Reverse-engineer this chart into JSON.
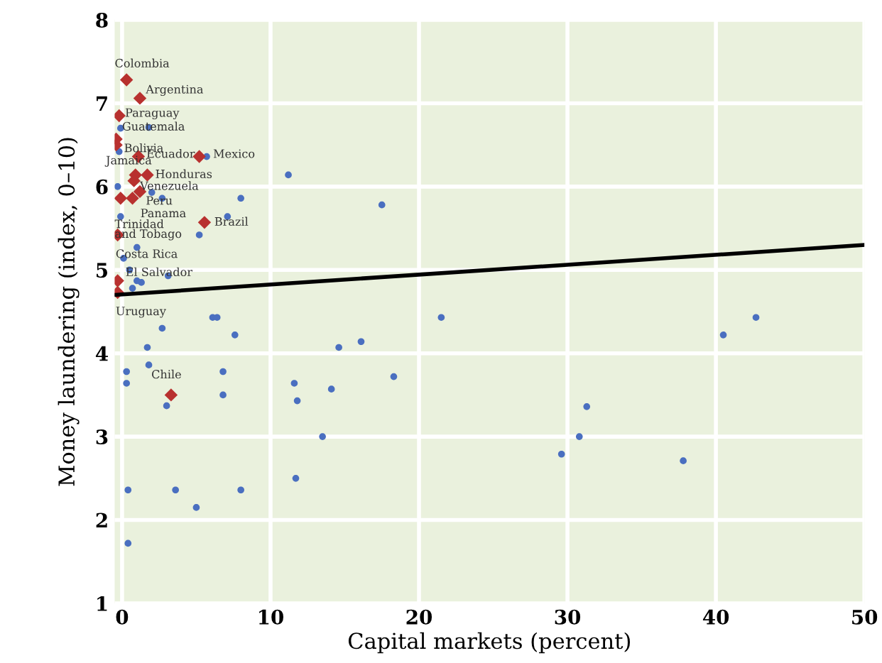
{
  "chart_data": {
    "type": "scatter",
    "xlabel": "Capital markets (percent)",
    "ylabel": "Money laundering (index, 0–10)",
    "xlim": [
      -0.5,
      50
    ],
    "ylim": [
      1,
      8
    ],
    "xticks": [
      0,
      10,
      20,
      30,
      40,
      50
    ],
    "yticks": [
      1,
      2,
      3,
      4,
      5,
      6,
      7,
      8
    ],
    "grid": true,
    "series": [
      {
        "marker": "circle",
        "color": "#4a6fc0",
        "x": [
          -0.1,
          1.8,
          -0.2,
          5.7,
          11.2,
          -0.3,
          2.0,
          8.0,
          2.7,
          17.5,
          7.1,
          -0.1,
          5.2,
          1.0,
          0.1,
          0.5,
          1.3,
          0.7,
          3.1,
          1.0,
          6.1,
          6.4,
          2.7,
          1.7,
          7.6,
          0.3,
          0.3,
          1.8,
          6.8,
          6.8,
          3.0,
          0.4,
          3.6,
          8.0,
          5.0,
          0.4,
          21.5,
          16.1,
          14.6,
          11.6,
          11.8,
          14.1,
          18.3,
          13.5,
          11.7,
          29.6,
          30.8,
          31.3,
          37.8,
          40.5,
          42.7
        ],
        "values": [
          6.7,
          6.71,
          6.42,
          6.36,
          6.14,
          6.0,
          5.93,
          5.86,
          5.86,
          5.78,
          5.64,
          5.64,
          5.42,
          5.27,
          5.14,
          5.0,
          4.85,
          4.78,
          4.93,
          4.87,
          4.43,
          4.43,
          4.3,
          4.07,
          4.22,
          3.78,
          3.64,
          3.86,
          3.78,
          3.5,
          3.37,
          2.36,
          2.36,
          2.36,
          2.15,
          1.72,
          4.43,
          4.14,
          4.07,
          3.64,
          3.43,
          3.57,
          3.72,
          3.0,
          2.5,
          2.79,
          3.0,
          3.36,
          2.71,
          4.22,
          4.43
        ]
      },
      {
        "marker": "diamond",
        "color": "#b8312f",
        "x": [
          0.3,
          1.2,
          -0.2,
          -0.4,
          -0.4,
          1.1,
          5.2,
          0.9,
          1.7,
          0.8,
          1.2,
          0.7,
          -0.1,
          -0.3,
          -0.3,
          -0.3,
          5.55,
          3.3
        ],
        "values": [
          7.28,
          7.06,
          6.85,
          6.57,
          6.5,
          6.36,
          6.36,
          6.14,
          6.14,
          6.07,
          5.94,
          5.86,
          5.86,
          5.42,
          4.87,
          4.73,
          5.57,
          3.5
        ]
      },
      {
        "type": "line",
        "color": "#000000",
        "x": [
          -0.5,
          50
        ],
        "values": [
          4.7,
          5.3
        ]
      }
    ],
    "annotations": [
      {
        "text": "Colombia",
        "x": 0.3,
        "y": 7.28
      },
      {
        "text": "Argentina",
        "x": 1.2,
        "y": 7.06
      },
      {
        "text": "Paraguay",
        "x": -0.2,
        "y": 6.85
      },
      {
        "text": "Guatemala",
        "x": -0.4,
        "y": 6.57
      },
      {
        "text": "Bolivia",
        "x": -0.4,
        "y": 6.5
      },
      {
        "text": "Ecuador",
        "x": 1.1,
        "y": 6.36
      },
      {
        "text": "Mexico",
        "x": 5.2,
        "y": 6.36
      },
      {
        "text": "Jamaica",
        "x": 0.9,
        "y": 6.14
      },
      {
        "text": "Honduras",
        "x": 1.7,
        "y": 6.14
      },
      {
        "text": "Venezuela",
        "x": 0.8,
        "y": 6.07
      },
      {
        "text": "Peru",
        "x": 1.2,
        "y": 5.94
      },
      {
        "text": "Panama",
        "x": 0.7,
        "y": 5.86
      },
      {
        "text": "Trinidad\nand Tobago",
        "x": -0.1,
        "y": 5.86
      },
      {
        "text": "Costa Rica",
        "x": -0.3,
        "y": 5.42
      },
      {
        "text": "El Salvador",
        "x": -0.3,
        "y": 4.87
      },
      {
        "text": "Uruguay",
        "x": -0.3,
        "y": 4.73
      },
      {
        "text": "Brazil",
        "x": 5.55,
        "y": 5.57
      },
      {
        "text": "Chile",
        "x": 3.3,
        "y": 3.5
      }
    ]
  }
}
